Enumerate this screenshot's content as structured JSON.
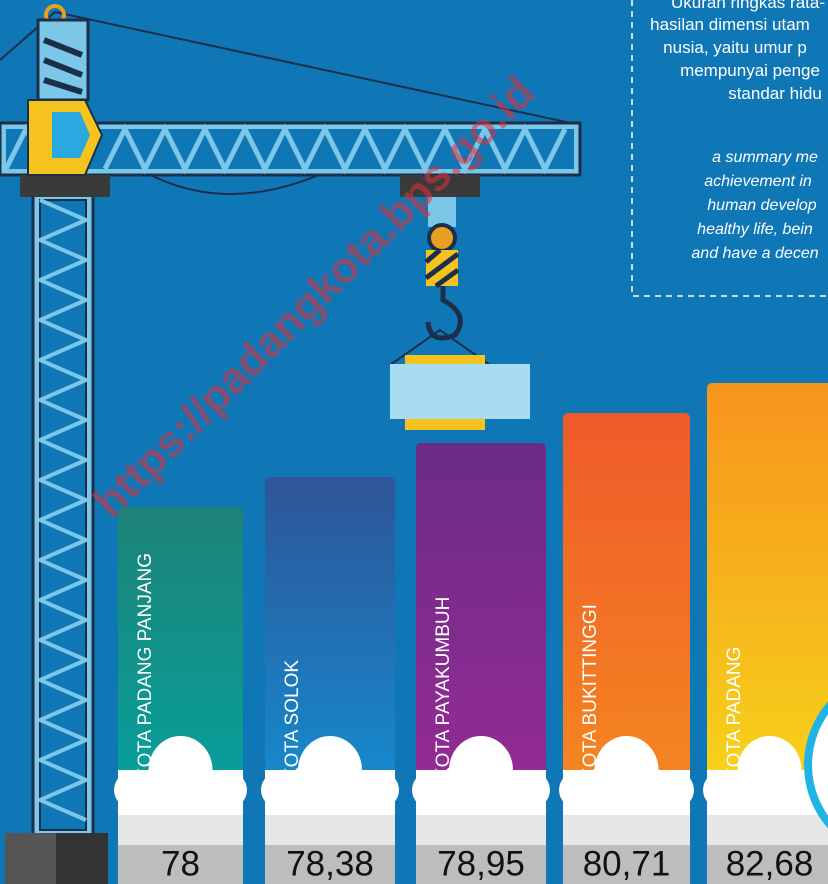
{
  "info_box": {
    "lines": [
      "Ukuran ringkas rata-",
      "hasilan dimensi utam",
      "nusia, yaitu umur p",
      "mempunyai penge",
      "standar hidu"
    ],
    "italic_lines": [
      "a summary me",
      "achievement in",
      "human develop",
      "healthy life, bein",
      "and have a decen"
    ]
  },
  "watermark": "https://padangkota.bps.go.id",
  "bars": [
    {
      "label": "KOTA PADANG PANJANG",
      "value": "78"
    },
    {
      "label": "KOTA  SOLOK",
      "value": "78,38"
    },
    {
      "label": "KOTA  PAYAKUMBUH",
      "value": "78,95"
    },
    {
      "label": "KOTA BUKITTINGGI",
      "value": "80,71"
    },
    {
      "label": "KOTA PADANG",
      "value": "82,68"
    }
  ]
}
